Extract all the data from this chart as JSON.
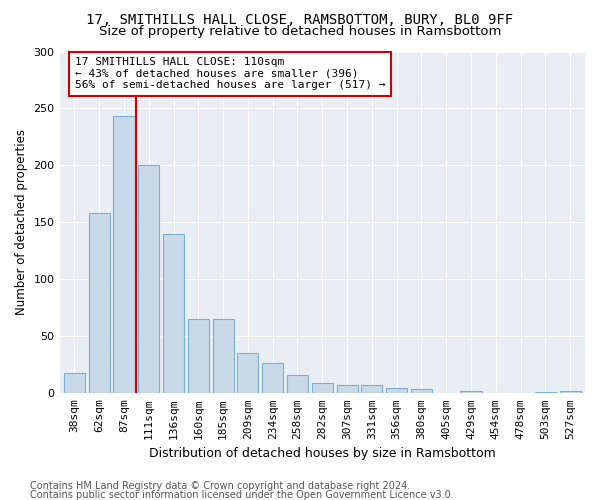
{
  "title1": "17, SMITHILLS HALL CLOSE, RAMSBOTTOM, BURY, BL0 9FF",
  "title2": "Size of property relative to detached houses in Ramsbottom",
  "xlabel": "Distribution of detached houses by size in Ramsbottom",
  "ylabel": "Number of detached properties",
  "categories": [
    "38sqm",
    "62sqm",
    "87sqm",
    "111sqm",
    "136sqm",
    "160sqm",
    "185sqm",
    "209sqm",
    "234sqm",
    "258sqm",
    "282sqm",
    "307sqm",
    "331sqm",
    "356sqm",
    "380sqm",
    "405sqm",
    "429sqm",
    "454sqm",
    "478sqm",
    "503sqm",
    "527sqm"
  ],
  "values": [
    18,
    158,
    243,
    200,
    140,
    65,
    65,
    35,
    27,
    16,
    9,
    7,
    7,
    5,
    4,
    0,
    2,
    0,
    0,
    1,
    2
  ],
  "bar_color": "#c9d9e8",
  "bar_edge_color": "#7bafd4",
  "vline_x": 2.5,
  "vline_color": "#cc0000",
  "annotation_text": "17 SMITHILLS HALL CLOSE: 110sqm\n← 43% of detached houses are smaller (396)\n56% of semi-detached houses are larger (517) →",
  "annotation_box_color": "#ffffff",
  "annotation_box_edge": "#cc0000",
  "ylim": [
    0,
    300
  ],
  "yticks": [
    0,
    50,
    100,
    150,
    200,
    250,
    300
  ],
  "bg_color": "#e8eef4",
  "footer1": "Contains HM Land Registry data © Crown copyright and database right 2024.",
  "footer2": "Contains public sector information licensed under the Open Government Licence v3.0.",
  "title1_fontsize": 10,
  "title2_fontsize": 9.5,
  "xlabel_fontsize": 9,
  "ylabel_fontsize": 8.5,
  "tick_fontsize": 8,
  "annotation_fontsize": 8,
  "footer_fontsize": 7
}
